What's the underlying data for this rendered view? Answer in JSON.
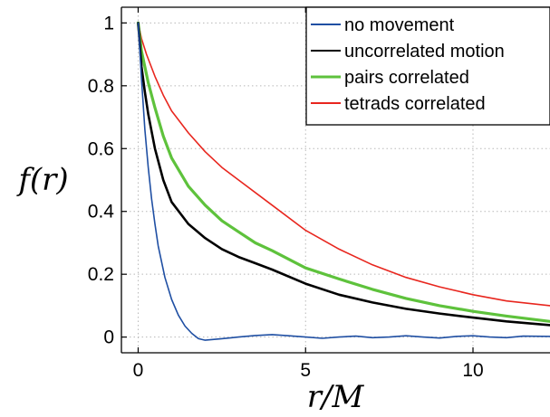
{
  "chart_data": {
    "type": "line",
    "xlabel": "r/M",
    "ylabel": "f(r)",
    "xlim": [
      -0.5,
      12.3
    ],
    "ylim": [
      -0.05,
      1.05
    ],
    "xticks": [
      0,
      5,
      10
    ],
    "yticks": [
      0,
      0.2,
      0.4,
      0.6,
      0.8,
      1
    ],
    "xtick_labels": [
      "0",
      "5",
      "10"
    ],
    "ytick_labels": [
      "0",
      "0.2",
      "0.4",
      "0.6",
      "0.8",
      "1"
    ],
    "grid": true,
    "legend_position": "top-right",
    "series": [
      {
        "name": "no movement",
        "color": "#1f4fa3",
        "x": [
          0,
          0.1,
          0.2,
          0.3,
          0.4,
          0.5,
          0.6,
          0.8,
          1.0,
          1.2,
          1.4,
          1.6,
          1.8,
          2.0,
          2.5,
          3.0,
          3.5,
          4.0,
          4.5,
          5.0,
          5.5,
          6.0,
          6.5,
          7.0,
          7.5,
          8.0,
          8.5,
          9.0,
          9.5,
          10.0,
          10.5,
          11.0,
          11.5,
          12.3
        ],
        "y": [
          1.0,
          0.82,
          0.66,
          0.54,
          0.44,
          0.36,
          0.29,
          0.19,
          0.12,
          0.07,
          0.035,
          0.012,
          -0.005,
          -0.01,
          -0.005,
          0.0,
          0.005,
          0.008,
          0.004,
          0.0,
          -0.004,
          0.0,
          0.003,
          -0.002,
          0.0,
          0.004,
          0.0,
          -0.003,
          0.002,
          0.004,
          0.0,
          -0.002,
          0.003,
          0.002
        ]
      },
      {
        "name": "uncorrelated motion",
        "color": "#000000",
        "x": [
          0,
          0.1,
          0.2,
          0.3,
          0.5,
          0.75,
          1.0,
          1.5,
          2.0,
          2.5,
          3.0,
          3.5,
          4.0,
          5.0,
          6.0,
          7.0,
          8.0,
          9.0,
          10.0,
          11.0,
          12.3
        ],
        "y": [
          1.0,
          0.86,
          0.78,
          0.71,
          0.6,
          0.5,
          0.43,
          0.36,
          0.315,
          0.28,
          0.255,
          0.235,
          0.215,
          0.17,
          0.135,
          0.11,
          0.09,
          0.075,
          0.062,
          0.05,
          0.038
        ]
      },
      {
        "name": "pairs correlated",
        "color": "#5ec23c",
        "x": [
          0,
          0.1,
          0.2,
          0.3,
          0.5,
          0.75,
          1.0,
          1.5,
          2.0,
          2.5,
          3.0,
          3.5,
          4.0,
          5.0,
          6.0,
          7.0,
          8.0,
          9.0,
          10.0,
          11.0,
          12.3
        ],
        "y": [
          1.0,
          0.91,
          0.86,
          0.81,
          0.73,
          0.64,
          0.57,
          0.48,
          0.42,
          0.37,
          0.335,
          0.3,
          0.275,
          0.22,
          0.185,
          0.152,
          0.123,
          0.1,
          0.082,
          0.067,
          0.05
        ]
      },
      {
        "name": "tetrads correlated",
        "color": "#e8261e",
        "x": [
          0,
          0.1,
          0.25,
          0.5,
          0.75,
          1.0,
          1.5,
          2.0,
          2.5,
          3.0,
          4.0,
          5.0,
          6.0,
          7.0,
          8.0,
          9.0,
          10.0,
          11.0,
          12.3
        ],
        "y": [
          1.0,
          0.95,
          0.9,
          0.83,
          0.77,
          0.72,
          0.65,
          0.59,
          0.54,
          0.5,
          0.42,
          0.34,
          0.28,
          0.23,
          0.19,
          0.16,
          0.135,
          0.115,
          0.1
        ]
      }
    ]
  }
}
